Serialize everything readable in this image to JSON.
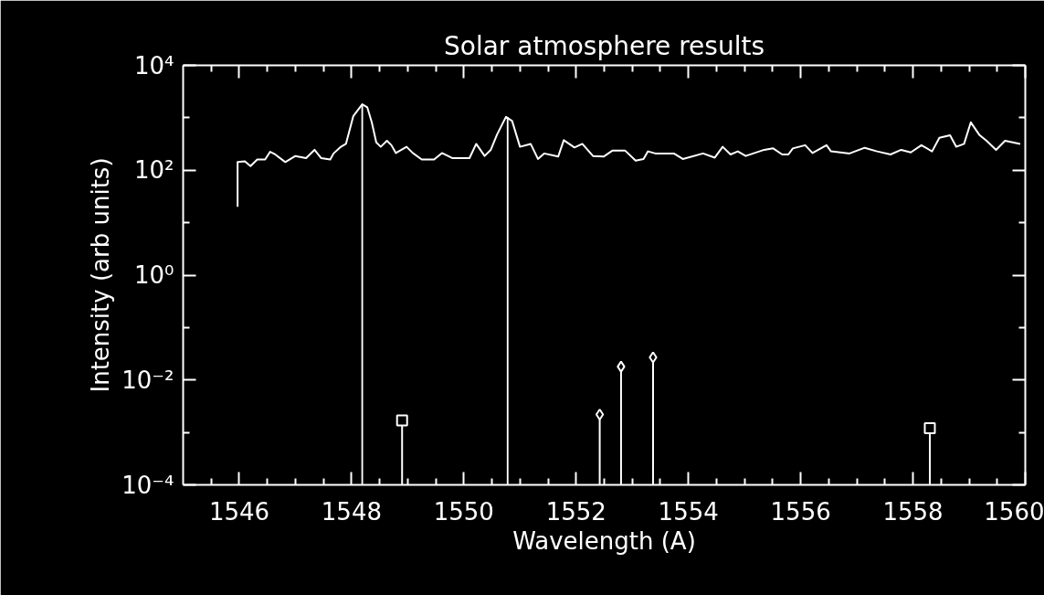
{
  "chart_data": {
    "type": "line",
    "title": "Solar atmosphere results",
    "xlabel": "Wavelength (A)",
    "ylabel": "Intensity (arb units)",
    "log": "y",
    "xlim": [
      1545,
      1560
    ],
    "ylim": [
      0.0001,
      10000
    ],
    "xticks": [
      {
        "value": 1545.5,
        "label": null
      },
      1546,
      {
        "value": 1546.5,
        "label": null
      },
      {
        "value": 1547,
        "label": null
      },
      {
        "value": 1547.5,
        "label": null
      },
      1548,
      {
        "value": 1548.5,
        "label": null
      },
      {
        "value": 1549,
        "label": null
      },
      {
        "value": 1549.5,
        "label": null
      },
      1550,
      {
        "value": 1550.5,
        "label": null
      },
      {
        "value": 1551,
        "label": null
      },
      {
        "value": 1551.5,
        "label": null
      },
      1552,
      {
        "value": 1552.5,
        "label": null
      },
      {
        "value": 1553,
        "label": null
      },
      {
        "value": 1553.5,
        "label": null
      },
      1554,
      {
        "value": 1554.5,
        "label": null
      },
      {
        "value": 1555,
        "label": null
      },
      {
        "value": 1555.5,
        "label": null
      },
      1556,
      {
        "value": 1556.5,
        "label": null
      },
      {
        "value": 1557,
        "label": null
      },
      {
        "value": 1557.5,
        "label": null
      },
      1558,
      {
        "value": 1558.5,
        "label": null
      },
      {
        "value": 1559,
        "label": null
      },
      {
        "value": 1559.5,
        "label": null
      },
      1560
    ],
    "yticks": [
      {
        "value": 0.0001,
        "label": "10⁻⁴"
      },
      {
        "value": 0.001,
        "label": null
      },
      {
        "value": 0.01,
        "label": "10⁻²"
      },
      {
        "value": 0.1,
        "label": null
      },
      {
        "value": 1,
        "label": "10⁰"
      },
      {
        "value": 10,
        "label": null
      },
      {
        "value": 100,
        "label": "10²"
      },
      {
        "value": 1000,
        "label": null
      },
      {
        "value": 10000,
        "label": "10⁴"
      }
    ],
    "grid": false,
    "series": [
      {
        "color": "#ffffff",
        "x": [
          1545.97,
          1545.97,
          1546.1,
          1546.2,
          1546.32,
          1546.46,
          1546.55,
          1546.64,
          1546.82,
          1547.0,
          1547.19,
          1547.34,
          1547.46,
          1547.62,
          1547.68,
          1547.81,
          1547.9,
          1548.03,
          1548.19,
          1548.28,
          1548.36,
          1548.44,
          1548.52,
          1548.63,
          1548.71,
          1548.79,
          1548.98,
          1549.09,
          1549.25,
          1549.47,
          1549.61,
          1549.8,
          1550.1,
          1550.22,
          1550.37,
          1550.48,
          1550.59,
          1550.75,
          1550.86,
          1551.0,
          1551.19,
          1551.32,
          1551.43,
          1551.68,
          1551.78,
          1551.97,
          1552.11,
          1552.3,
          1552.49,
          1552.65,
          1552.87,
          1553.06,
          1553.2,
          1553.28,
          1553.41,
          1553.74,
          1553.9,
          1554.26,
          1554.47,
          1554.61,
          1554.75,
          1554.88,
          1555.02,
          1555.35,
          1555.51,
          1555.67,
          1555.78,
          1555.86,
          1556.08,
          1556.21,
          1556.46,
          1556.54,
          1556.87,
          1557.14,
          1557.36,
          1557.6,
          1557.79,
          1557.96,
          1558.15,
          1558.34,
          1558.47,
          1558.66,
          1558.77,
          1558.91,
          1559.03,
          1559.18,
          1559.31,
          1559.48,
          1559.64,
          1559.91
        ],
        "values": [
          20,
          143,
          148,
          120,
          160,
          160,
          225,
          200,
          143,
          187,
          170,
          245,
          170,
          160,
          209,
          280,
          318,
          1070,
          1810,
          1580,
          820,
          340,
          280,
          365,
          300,
          213,
          280,
          213,
          160,
          160,
          213,
          170,
          170,
          318,
          187,
          245,
          475,
          1040,
          870,
          280,
          318,
          164,
          209,
          182,
          375,
          272,
          318,
          187,
          182,
          238,
          238,
          153,
          164,
          229,
          209,
          209,
          164,
          209,
          174,
          280,
          200,
          229,
          187,
          245,
          261,
          200,
          200,
          261,
          300,
          213,
          300,
          229,
          209,
          268,
          229,
          200,
          245,
          219,
          300,
          229,
          417,
          464,
          280,
          318,
          820,
          475,
          365,
          245,
          365,
          318
        ]
      },
      {
        "type": "bar",
        "color": "#ffffff",
        "x": [
          1548.19,
          1550.78
        ],
        "values": [
          1810,
          1040
        ]
      },
      {
        "type": "lollipop",
        "marker": "square",
        "color": "#ffffff",
        "x": [
          1548.9,
          1558.3
        ],
        "values": [
          0.0017,
          0.0012
        ]
      },
      {
        "type": "lollipop",
        "marker": "diamond",
        "color": "#ffffff",
        "x": [
          1552.42,
          1552.8,
          1553.37
        ],
        "values": [
          0.0022,
          0.018,
          0.027
        ]
      }
    ]
  }
}
